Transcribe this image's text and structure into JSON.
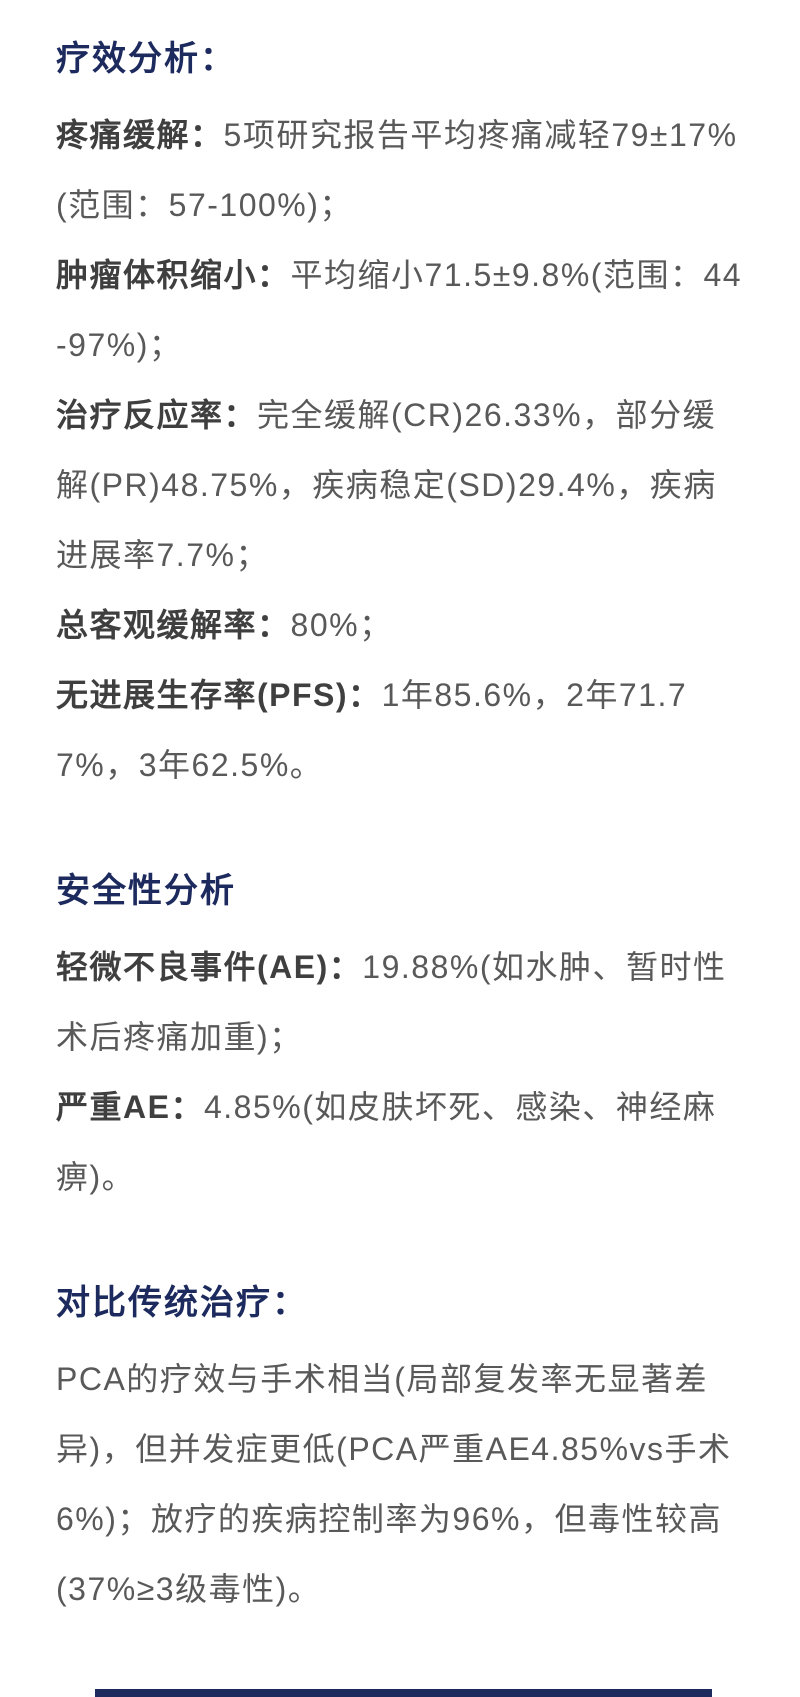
{
  "colors": {
    "heading": "#1d2a5e",
    "body_text": "#595959",
    "label_text": "#3f3f3f",
    "accent_bar": "#1d2a5e",
    "background": "#ffffff"
  },
  "sections": [
    {
      "heading": "疗效分析：",
      "items": [
        {
          "label": "疼痛缓解：",
          "text": "5项研究报告平均疼痛减轻79±17%(范围：57-100%)；"
        },
        {
          "label": "肿瘤体积缩小：",
          "text": "平均缩小71.5±9.8%(范围：44-97%)；"
        },
        {
          "label": "治疗反应率：",
          "text": "完全缓解(CR)26.33%，部分缓解(PR)48.75%，疾病稳定(SD)29.4%，疾病进展率7.7%；"
        },
        {
          "label": "总客观缓解率：",
          "text": "80%；"
        },
        {
          "label": "无进展生存率(PFS)：",
          "text": "1年85.6%，2年71.77%，3年62.5%。"
        }
      ]
    },
    {
      "heading": "安全性分析",
      "items": [
        {
          "label": "轻微不良事件(AE)：",
          "text": "19.88%(如水肿、暂时性术后疼痛加重)；"
        },
        {
          "label": "严重AE：",
          "text": "4.85%(如皮肤坏死、感染、神经麻痹)。"
        }
      ]
    },
    {
      "heading": "对比传统治疗：",
      "items": [
        {
          "label": "",
          "text": "PCA的疗效与手术相当(局部复发率无显著差异)，但并发症更低(PCA严重AE4.85%vs手术6%)；放疗的疾病控制率为96%，但毒性较高(37%≥3级毒性)。"
        }
      ]
    }
  ]
}
